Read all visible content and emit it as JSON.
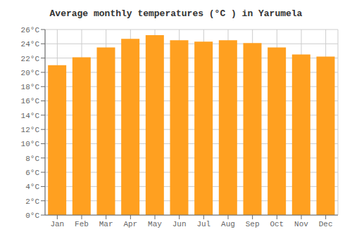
{
  "chart_data": {
    "type": "bar",
    "title": "Average monthly temperatures (°C ) in Yarumela",
    "categories": [
      "Jan",
      "Feb",
      "Mar",
      "Apr",
      "May",
      "Jun",
      "Jul",
      "Aug",
      "Sep",
      "Oct",
      "Nov",
      "Dec"
    ],
    "values": [
      21.0,
      22.1,
      23.5,
      24.7,
      25.2,
      24.5,
      24.3,
      24.5,
      24.1,
      23.5,
      22.5,
      22.2
    ],
    "color": "#FFA020",
    "ylim": [
      0,
      26
    ],
    "yticks": [
      {
        "value": 0,
        "label": "0°C"
      },
      {
        "value": 2,
        "label": "2°C"
      },
      {
        "value": 4,
        "label": "4°C"
      },
      {
        "value": 6,
        "label": "6°C"
      },
      {
        "value": 8,
        "label": "8°C"
      },
      {
        "value": 10,
        "label": "10°C"
      },
      {
        "value": 12,
        "label": "12°C"
      },
      {
        "value": 14,
        "label": "14°C"
      },
      {
        "value": 16,
        "label": "16°C"
      },
      {
        "value": 18,
        "label": "18°C"
      },
      {
        "value": 20,
        "label": "20°C"
      },
      {
        "value": 22,
        "label": "22°C"
      },
      {
        "value": 24,
        "label": "24°C"
      },
      {
        "value": 26,
        "label": "26°C"
      }
    ],
    "grid": true
  }
}
